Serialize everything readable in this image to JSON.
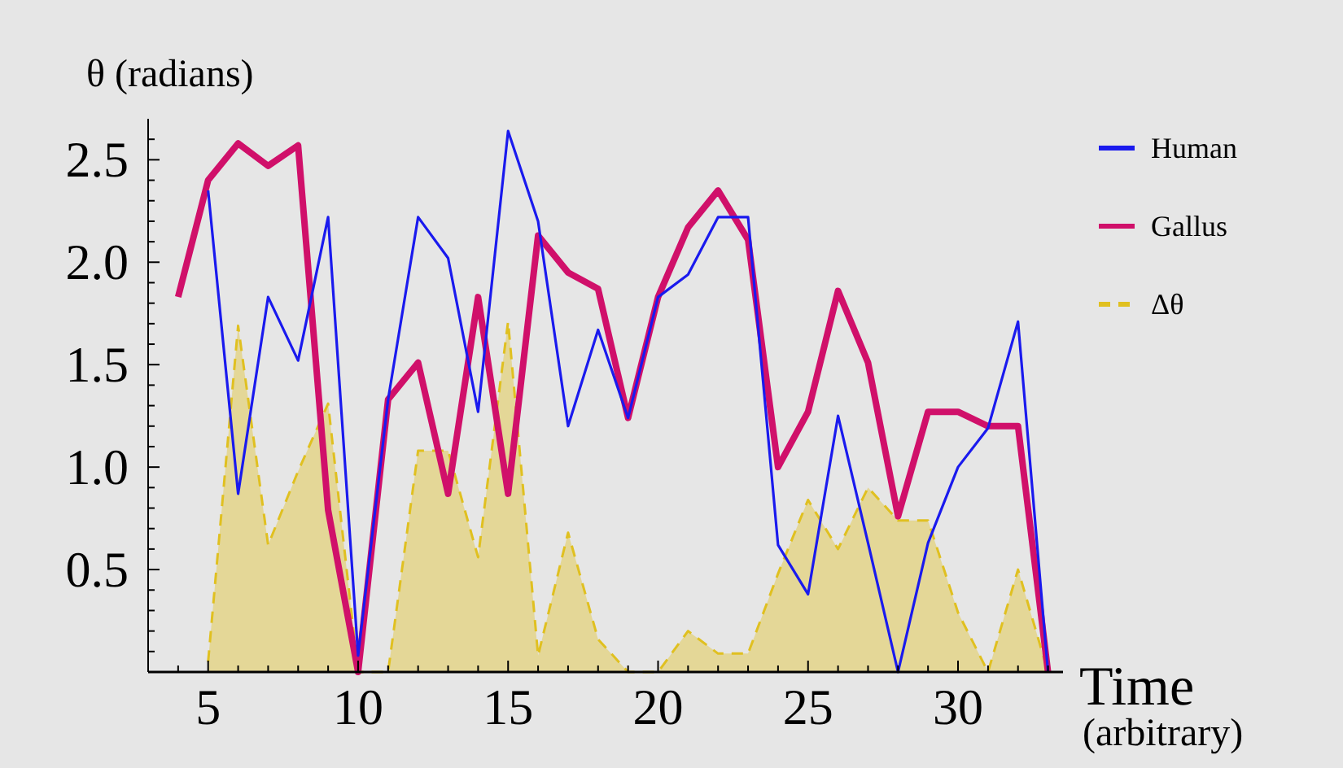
{
  "chart_data": {
    "type": "line",
    "ylabel": "θ (radians)",
    "xlabel": "Time (arbitrary)",
    "legend": "top right",
    "grid": false,
    "xlim": [
      3,
      33.5
    ],
    "ylim": [
      0,
      2.7
    ],
    "xticks": [
      {
        "value": 4,
        "label": null
      },
      5,
      {
        "value": 6,
        "label": null
      },
      {
        "value": 7,
        "label": null
      },
      {
        "value": 8,
        "label": null
      },
      {
        "value": 9,
        "label": null
      },
      10,
      {
        "value": 11,
        "label": null
      },
      {
        "value": 12,
        "label": null
      },
      {
        "value": 13,
        "label": null
      },
      {
        "value": 14,
        "label": null
      },
      15,
      {
        "value": 16,
        "label": null
      },
      {
        "value": 17,
        "label": null
      },
      {
        "value": 18,
        "label": null
      },
      {
        "value": 19,
        "label": null
      },
      20,
      {
        "value": 21,
        "label": null
      },
      {
        "value": 22,
        "label": null
      },
      {
        "value": 23,
        "label": null
      },
      {
        "value": 24,
        "label": null
      },
      25,
      {
        "value": 26,
        "label": null
      },
      {
        "value": 27,
        "label": null
      },
      {
        "value": 28,
        "label": null
      },
      {
        "value": 29,
        "label": null
      },
      30,
      {
        "value": 31,
        "label": null
      },
      {
        "value": 32,
        "label": null
      },
      {
        "value": 33,
        "label": null
      }
    ],
    "yticks": [
      {
        "value": 0.1,
        "label": null
      },
      {
        "value": 0.2,
        "label": null
      },
      {
        "value": 0.3,
        "label": null
      },
      {
        "value": 0.4,
        "label": null
      },
      0.5,
      {
        "value": 0.6,
        "label": null
      },
      {
        "value": 0.7,
        "label": null
      },
      {
        "value": 0.8,
        "label": null
      },
      {
        "value": 0.9,
        "label": null
      },
      {
        "value": 1,
        "label": "1.0"
      },
      {
        "value": 1.1,
        "label": null
      },
      {
        "value": 1.2,
        "label": null
      },
      {
        "value": 1.3,
        "label": null
      },
      {
        "value": 1.4,
        "label": null
      },
      1.5,
      {
        "value": 1.6,
        "label": null
      },
      {
        "value": 1.7,
        "label": null
      },
      {
        "value": 1.8,
        "label": null
      },
      {
        "value": 1.9,
        "label": null
      },
      {
        "value": 2,
        "label": "2.0"
      },
      {
        "value": 2.1,
        "label": null
      },
      {
        "value": 2.2,
        "label": null
      },
      {
        "value": 2.3,
        "label": null
      },
      {
        "value": 2.4,
        "label": null
      },
      2.5,
      {
        "value": 2.6,
        "label": null
      }
    ],
    "series": [
      {
        "name": "Human",
        "color": "#1a1aee",
        "x": [
          5,
          6,
          7,
          8,
          9,
          10,
          11,
          12,
          13,
          14,
          15,
          16,
          17,
          18,
          19,
          20,
          21,
          22,
          23,
          24,
          25,
          26,
          27,
          28,
          29,
          30,
          31,
          32,
          33
        ],
        "values": [
          2.35,
          0.87,
          1.83,
          1.52,
          2.22,
          0.08,
          1.33,
          2.22,
          2.02,
          1.27,
          2.64,
          2.2,
          1.2,
          1.67,
          1.24,
          1.83,
          1.94,
          2.22,
          2.22,
          0.62,
          0.38,
          1.25,
          0.63,
          0,
          0.63,
          1,
          1.19,
          1.71,
          0
        ]
      },
      {
        "name": "Gallus",
        "color": "#d0106a",
        "x": [
          4,
          5,
          6,
          7,
          8,
          9,
          10,
          11,
          12,
          13,
          14,
          15,
          16,
          17,
          18,
          19,
          20,
          21,
          22,
          23,
          24,
          25,
          26,
          27,
          28,
          29,
          30,
          31,
          32,
          33
        ],
        "values": [
          1.83,
          2.4,
          2.58,
          2.47,
          2.57,
          0.79,
          0,
          1.33,
          1.51,
          0.87,
          1.83,
          0.87,
          2.13,
          1.95,
          1.87,
          1.24,
          1.83,
          2.17,
          2.35,
          2.11,
          1,
          1.27,
          1.86,
          1.51,
          0.76,
          1.27,
          1.27,
          1.2,
          1.2,
          0
        ]
      },
      {
        "name": "Δθ",
        "type": "area",
        "color": "#e0c020",
        "line_style": "dashed",
        "x": [
          5,
          6,
          7,
          8,
          9,
          10,
          11,
          12,
          13,
          14,
          15,
          16,
          17,
          18,
          19,
          20,
          21,
          22,
          23,
          24,
          25,
          26,
          27,
          28,
          29,
          30,
          31,
          32,
          33
        ],
        "values": [
          0.05,
          1.69,
          0.62,
          0.98,
          1.31,
          0,
          0,
          1.08,
          1.08,
          0.56,
          1.71,
          0.08,
          0.68,
          0.16,
          0,
          0,
          0.2,
          0.09,
          0.09,
          0.48,
          0.84,
          0.6,
          0.9,
          0.74,
          0.74,
          0.29,
          0,
          0.5,
          0
        ]
      }
    ]
  }
}
